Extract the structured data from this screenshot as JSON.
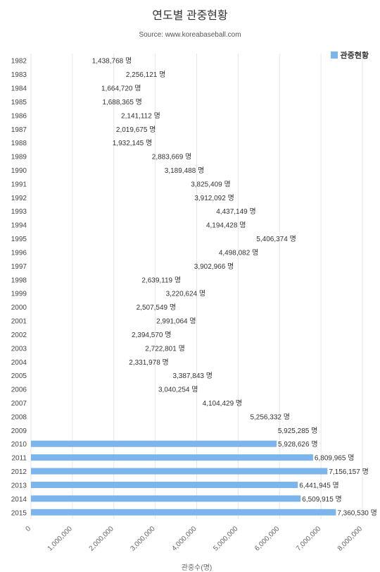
{
  "chart_data": {
    "type": "bar",
    "orientation": "horizontal",
    "title": "연도별 관중현황",
    "subtitle": "Source: www.koreabaseball.com",
    "xlabel": "관중수(명)",
    "ylabel": "",
    "xlim": [
      0,
      8000000
    ],
    "x_ticks": [
      0,
      1000000,
      2000000,
      3000000,
      4000000,
      5000000,
      6000000,
      7000000,
      8000000
    ],
    "x_tick_labels": [
      "0",
      "1,000,000",
      "2,000,000",
      "3,000,000",
      "4,000,000",
      "5,000,000",
      "6,000,000",
      "7,000,000",
      "8,000,000"
    ],
    "grid": "vertical",
    "legend": "top-right",
    "value_suffix": "명",
    "categories": [
      "1982",
      "1983",
      "1984",
      "1985",
      "1986",
      "1987",
      "1988",
      "1989",
      "1990",
      "1991",
      "1992",
      "1993",
      "1994",
      "1995",
      "1996",
      "1997",
      "1998",
      "1999",
      "2000",
      "2001",
      "2002",
      "2003",
      "2004",
      "2005",
      "2006",
      "2007",
      "2008",
      "2009",
      "2010",
      "2011",
      "2012",
      "2013",
      "2014",
      "2015"
    ],
    "series": [
      {
        "name": "관중현황",
        "color": "#7cb5ec",
        "values": [
          1438768,
          2256121,
          1664720,
          1688365,
          2141112,
          2019675,
          1932145,
          2883669,
          3189488,
          3825409,
          3912092,
          4437149,
          4194428,
          5406374,
          4498082,
          3902966,
          2639119,
          3220624,
          2507549,
          2991064,
          2394570,
          2722801,
          2331978,
          3387843,
          3040254,
          4104429,
          5256332,
          5925285,
          5928626,
          6809965,
          7156157,
          6441945,
          6509915,
          7360530
        ],
        "bars_visible_from": "2010"
      }
    ]
  }
}
